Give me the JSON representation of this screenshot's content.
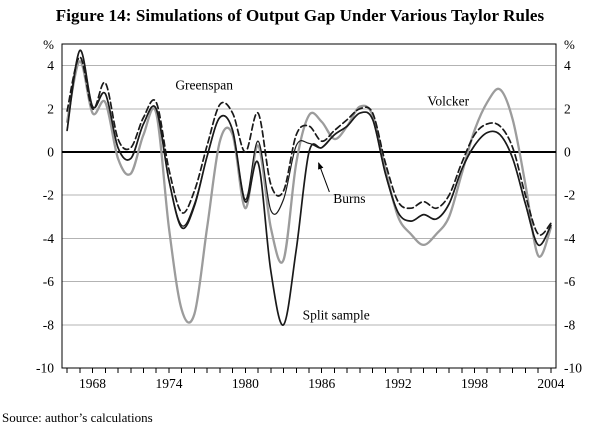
{
  "figure": {
    "title": "Figure 14: Simulations of Output Gap Under Various Taylor Rules",
    "source": "Source: author’s calculations"
  },
  "chart_data": {
    "type": "line",
    "title": "Figure 14: Simulations of Output Gap Under Various Taylor Rules",
    "ylabel_left": "%",
    "ylabel_right": "%",
    "xlabel": "",
    "xlim": [
      1965.6,
      2004.4
    ],
    "ylim": [
      -10,
      5
    ],
    "y_gridlines": [
      4,
      2,
      0,
      -2,
      -4,
      -6,
      -8
    ],
    "y_tick_labels": [
      4,
      2,
      0,
      -2,
      -4,
      -6,
      -8,
      -10
    ],
    "x_tick_years_labeled": [
      1968,
      1974,
      1980,
      1986,
      1992,
      1998,
      2004
    ],
    "grid_color": "#b3b3b3",
    "axis_color": "#000000",
    "x": [
      1966,
      1967,
      1968,
      1969,
      1970,
      1971,
      1972,
      1973,
      1974,
      1975,
      1976,
      1977,
      1978,
      1979,
      1980,
      1981,
      1982,
      1983,
      1984,
      1985,
      1986,
      1987,
      1988,
      1989,
      1990,
      1991,
      1992,
      1993,
      1994,
      1995,
      1996,
      1997,
      1998,
      1999,
      2000,
      2001,
      2002,
      2003,
      2004
    ],
    "series": [
      {
        "name": "Greenspan",
        "style": "dashed",
        "color": "#1a1a1a",
        "width": 1.7,
        "values": [
          1.9,
          4.4,
          2.0,
          3.2,
          0.6,
          0.2,
          1.6,
          2.3,
          -0.8,
          -2.8,
          -1.8,
          0.3,
          2.2,
          1.8,
          0.0,
          1.8,
          -1.5,
          -1.8,
          0.8,
          1.2,
          0.5,
          1.0,
          1.5,
          2.0,
          1.8,
          -0.5,
          -2.3,
          -2.6,
          -2.3,
          -2.6,
          -2.0,
          -0.5,
          0.8,
          1.3,
          1.2,
          0.2,
          -2.0,
          -3.8,
          -3.3
        ]
      },
      {
        "name": "Volcker",
        "style": "solid",
        "color": "#9c9c9c",
        "width": 2.3,
        "values": [
          1.4,
          4.2,
          1.8,
          2.3,
          -0.3,
          -1.0,
          0.8,
          1.8,
          -3.5,
          -7.3,
          -7.5,
          -3.5,
          0.5,
          0.8,
          -2.6,
          0.3,
          -3.5,
          -5.0,
          -0.5,
          1.7,
          1.4,
          0.6,
          1.2,
          2.1,
          1.7,
          -0.8,
          -3.0,
          -3.8,
          -4.3,
          -3.8,
          -3.0,
          -1.0,
          1.0,
          2.3,
          2.9,
          1.5,
          -1.5,
          -4.8,
          -3.5
        ]
      },
      {
        "name": "Burns",
        "style": "solid",
        "color": "#1a1a1a",
        "width": 1.2,
        "values": [
          1.0,
          4.7,
          2.1,
          2.7,
          0.2,
          -0.3,
          1.3,
          2.0,
          -1.3,
          -3.4,
          -2.4,
          -0.2,
          1.6,
          1.0,
          -2.2,
          0.5,
          -2.7,
          -2.2,
          0.3,
          0.4,
          0.2,
          0.8,
          1.2,
          1.8,
          1.5,
          -1.0,
          -2.8,
          -3.2,
          -2.9,
          -3.1,
          -2.4,
          -0.8,
          0.3,
          0.9,
          0.8,
          -0.3,
          -2.4,
          -4.3,
          -3.4
        ]
      },
      {
        "name": "Split sample",
        "style": "solid",
        "color": "#1a1a1a",
        "width": 1.7,
        "values": [
          1.0,
          4.7,
          2.1,
          2.7,
          0.2,
          -0.3,
          1.3,
          2.0,
          -1.3,
          -3.5,
          -2.5,
          -0.2,
          1.6,
          1.0,
          -2.3,
          -0.5,
          -5.5,
          -8.0,
          -4.5,
          0.0,
          0.2,
          0.8,
          1.2,
          1.8,
          1.5,
          -1.0,
          -2.8,
          -3.2,
          -2.9,
          -3.1,
          -2.4,
          -0.8,
          0.3,
          0.9,
          0.8,
          -0.3,
          -2.4,
          -4.3,
          -3.4
        ]
      }
    ],
    "annotations": [
      {
        "text": "Greenspan",
        "year": 1974.5,
        "value": 2.9,
        "anchor": "start"
      },
      {
        "text": "Volcker",
        "year": 1994.3,
        "value": 2.15,
        "anchor": "start"
      },
      {
        "text": "Burns",
        "year": 1986.9,
        "value": -2.35,
        "anchor": "start",
        "arrow": {
          "from_year": 1986.6,
          "from_value": -1.85,
          "to_year": 1985.75,
          "to_value": -0.5
        }
      },
      {
        "text": "Split sample",
        "year": 1984.5,
        "value": -7.75,
        "anchor": "start"
      }
    ]
  }
}
